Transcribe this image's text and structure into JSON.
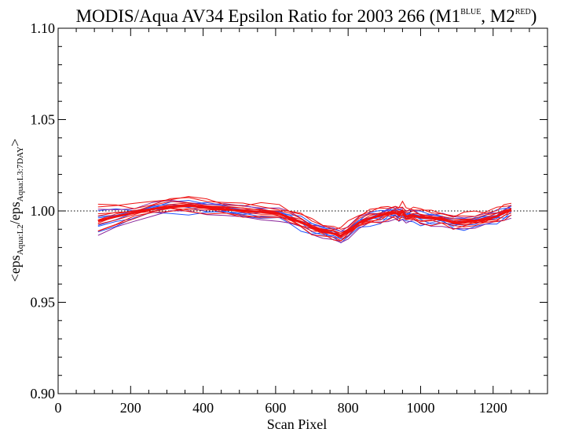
{
  "chart_data": {
    "type": "line",
    "title": "MODIS/Aqua AV34 Epsilon Ratio for 2003 266 (M1",
    "title_sup_1": "BLUE",
    "title_mid": ", M2",
    "title_sup_2": "RED",
    "title_end": ")",
    "xlabel": "Scan Pixel",
    "ylabel_parts": [
      "<eps",
      "Aqua:L2",
      "/eps",
      "Aqua:L3:7DAY",
      ">"
    ],
    "xlim": [
      0,
      1350
    ],
    "ylim": [
      0.9,
      1.1
    ],
    "xticks": [
      "0",
      "200",
      "400",
      "600",
      "800",
      "1000",
      "1200"
    ],
    "xtick_values": [
      0,
      200,
      400,
      600,
      800,
      1000,
      1200
    ],
    "yticks": [
      "0.90",
      "0.95",
      "1.00",
      "1.05",
      "1.10"
    ],
    "ytick_values": [
      0.9,
      0.95,
      1.0,
      1.05,
      1.1
    ],
    "reference_line": 1.0,
    "grid": false,
    "colors": {
      "blue": "#2255ff",
      "red": "#ee1111",
      "purple": "#882299",
      "axis": "#000000"
    },
    "x": [
      110,
      160,
      210,
      260,
      310,
      360,
      410,
      460,
      510,
      560,
      610,
      640,
      670,
      700,
      730,
      760,
      780,
      800,
      830,
      860,
      890,
      910,
      930,
      940,
      950,
      960,
      980,
      1000,
      1030,
      1060,
      1090,
      1120,
      1150,
      1180,
      1210,
      1230,
      1250
    ],
    "mean": [
      0.9945,
      0.997,
      0.999,
      1.001,
      1.0025,
      1.003,
      1.002,
      1.001,
      1.0,
      0.9995,
      0.9985,
      0.996,
      0.994,
      0.991,
      0.989,
      0.9875,
      0.9865,
      0.989,
      0.9935,
      0.996,
      0.9975,
      0.9985,
      0.999,
      0.998,
      0.9995,
      0.997,
      0.9975,
      0.9965,
      0.996,
      0.9955,
      0.9935,
      0.994,
      0.9945,
      0.9955,
      0.997,
      0.999,
      1.0005
    ],
    "series": [
      {
        "color": "blue",
        "offset": 0.002,
        "spread": 0.001,
        "phase": 0.3
      },
      {
        "color": "blue",
        "offset": -0.0015,
        "spread": 0.0012,
        "phase": 1.1
      },
      {
        "color": "blue",
        "offset": 0.0005,
        "spread": 0.0009,
        "phase": 2.0
      },
      {
        "color": "blue",
        "offset": -0.003,
        "spread": 0.0015,
        "phase": 2.7
      },
      {
        "color": "blue",
        "offset": 0.001,
        "spread": 0.0011,
        "phase": 3.5
      },
      {
        "color": "blue",
        "offset": -0.0005,
        "spread": 0.001,
        "phase": 4.2
      },
      {
        "color": "purple",
        "offset": -0.0035,
        "spread": 0.0008,
        "phase": 0.9
      },
      {
        "color": "purple",
        "offset": 0.0025,
        "spread": 0.0009,
        "phase": 1.9
      },
      {
        "color": "red",
        "offset": 0.0035,
        "spread": 0.001,
        "phase": 0.5
      },
      {
        "color": "red",
        "offset": 0.0015,
        "spread": 0.0008,
        "phase": 1.4
      },
      {
        "color": "red",
        "offset": -0.001,
        "spread": 0.0009,
        "phase": 2.3
      },
      {
        "color": "red",
        "offset": 0.0,
        "spread": 0.0007,
        "phase": 3.1
      },
      {
        "color": "red",
        "offset": -0.002,
        "spread": 0.001,
        "phase": 3.9
      },
      {
        "color": "red",
        "offset": 0.004,
        "spread": 0.0012,
        "phase": 4.6
      },
      {
        "color": "red",
        "offset": 0.0005,
        "spread": 0.0006,
        "phase": 5.3
      },
      {
        "color": "red",
        "offset": -0.0005,
        "spread": 0.0006,
        "phase": 5.9
      },
      {
        "color": "red",
        "offset": 0.001,
        "spread": 0.0005,
        "phase": 0.1
      },
      {
        "color": "red",
        "offset": -0.0025,
        "spread": 0.0011,
        "phase": 1.7
      }
    ]
  }
}
